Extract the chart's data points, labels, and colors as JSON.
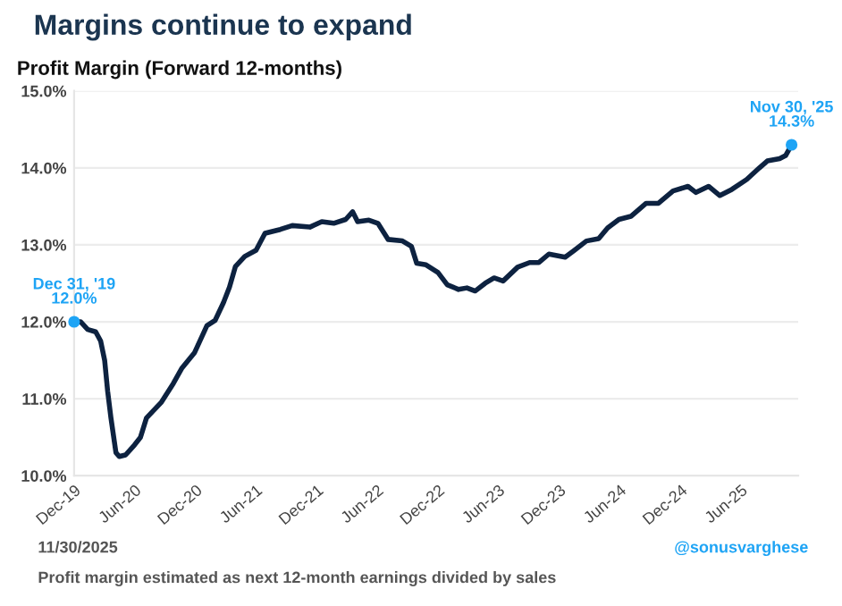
{
  "chart_data": {
    "type": "line",
    "title": "Margins continue to expand",
    "subtitle": "Profit Margin (Forward 12-months)",
    "x": [
      "2019-12-31",
      "2020-01-20",
      "2020-02-10",
      "2020-03-05",
      "2020-03-20",
      "2020-04-01",
      "2020-04-10",
      "2020-04-20",
      "2020-05-05",
      "2020-05-15",
      "2020-06-03",
      "2020-06-30",
      "2020-07-18",
      "2020-08-05",
      "2020-09-18",
      "2020-10-25",
      "2020-11-20",
      "2020-12-28",
      "2021-02-03",
      "2021-02-28",
      "2021-03-25",
      "2021-04-12",
      "2021-04-30",
      "2021-05-28",
      "2021-07-01",
      "2021-07-28",
      "2021-09-12",
      "2021-10-18",
      "2021-12-10",
      "2022-01-15",
      "2022-02-20",
      "2022-03-28",
      "2022-04-18",
      "2022-05-03",
      "2022-06-06",
      "2022-07-03",
      "2022-08-03",
      "2022-09-15",
      "2022-10-12",
      "2022-10-28",
      "2022-11-25",
      "2022-12-31",
      "2023-01-28",
      "2023-03-03",
      "2023-03-28",
      "2023-04-22",
      "2023-05-22",
      "2023-06-18",
      "2023-07-15",
      "2023-08-28",
      "2023-10-03",
      "2023-10-31",
      "2023-11-30",
      "2024-01-18",
      "2024-02-15",
      "2024-03-22",
      "2024-04-28",
      "2024-05-25",
      "2024-06-28",
      "2024-08-03",
      "2024-09-18",
      "2024-10-25",
      "2024-12-08",
      "2025-01-22",
      "2025-02-15",
      "2025-03-25",
      "2025-04-28",
      "2025-06-03",
      "2025-07-18",
      "2025-08-25",
      "2025-09-18",
      "2025-10-25",
      "2025-11-12",
      "2025-11-30"
    ],
    "series": [
      {
        "color": "#0d2240",
        "values": [
          12.0,
          12.0,
          11.9,
          11.87,
          11.75,
          11.5,
          11.1,
          10.75,
          10.3,
          10.25,
          10.27,
          10.4,
          10.5,
          10.75,
          10.95,
          11.2,
          11.4,
          11.6,
          11.95,
          12.02,
          12.25,
          12.45,
          12.72,
          12.85,
          12.93,
          13.15,
          13.2,
          13.25,
          13.23,
          13.3,
          13.28,
          13.33,
          13.43,
          13.3,
          13.32,
          13.28,
          13.07,
          13.05,
          12.98,
          12.76,
          12.74,
          12.64,
          12.48,
          12.42,
          12.44,
          12.4,
          12.5,
          12.57,
          12.53,
          12.71,
          12.77,
          12.77,
          12.88,
          12.84,
          12.93,
          13.05,
          13.08,
          13.22,
          13.33,
          13.37,
          13.54,
          13.54,
          13.7,
          13.76,
          13.68,
          13.76,
          13.64,
          13.72,
          13.85,
          14.0,
          14.09,
          14.12,
          14.16,
          14.3
        ]
      },
      {
        "type": "scatter",
        "marker": "circle",
        "color": "#1ea4f5",
        "x": [
          "2019-12-31",
          "2025-11-30"
        ],
        "values": [
          12.0,
          14.3
        ]
      }
    ],
    "xlim": [
      "2019-12-31",
      "2025-12-20"
    ],
    "xticks": [
      {
        "value": "2019-12-31",
        "label": "Dec-19"
      },
      {
        "value": "2020-06-30",
        "label": "Jun-20"
      },
      {
        "value": "2020-12-31",
        "label": "Dec-20"
      },
      {
        "value": "2021-06-30",
        "label": "Jun-21"
      },
      {
        "value": "2021-12-31",
        "label": "Dec-21"
      },
      {
        "value": "2022-06-30",
        "label": "Jun-22"
      },
      {
        "value": "2022-12-31",
        "label": "Dec-22"
      },
      {
        "value": "2023-06-30",
        "label": "Jun-23"
      },
      {
        "value": "2023-12-31",
        "label": "Dec-23"
      },
      {
        "value": "2024-06-30",
        "label": "Jun-24"
      },
      {
        "value": "2024-12-31",
        "label": "Dec-24"
      },
      {
        "value": "2025-06-30",
        "label": "Jun-25"
      }
    ],
    "ylim": [
      10.0,
      15.0
    ],
    "yticks": [
      {
        "value": 10.0,
        "label": "10.0%"
      },
      {
        "value": 11.0,
        "label": "11.0%"
      },
      {
        "value": 12.0,
        "label": "12.0%"
      },
      {
        "value": 13.0,
        "label": "13.0%"
      },
      {
        "value": 14.0,
        "label": "14.0%"
      },
      {
        "value": 15.0,
        "label": "15.0%"
      }
    ],
    "grid": "y",
    "marker": "none",
    "line_style": "solid",
    "annotations": [
      {
        "text": "Dec 31, '19\n12.0%",
        "x": "2019-12-31",
        "y": 12.0
      },
      {
        "text": "Nov 30, '25\n14.3%",
        "x": "2025-11-30",
        "y": 14.3
      },
      "11/30/2025",
      "Profit margin estimated as next 12-month earnings divided by sales",
      "@sonusvarghese"
    ]
  }
}
